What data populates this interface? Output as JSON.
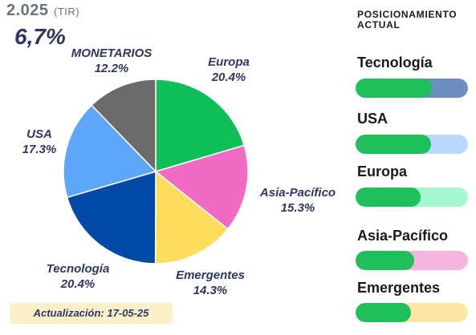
{
  "header": {
    "year": "2.025",
    "year_unit": "(TIR)",
    "yield": "6,7%"
  },
  "chart_data": {
    "type": "pie",
    "slices": [
      {
        "name": "Europa",
        "value": 20.4,
        "label": "20.4%",
        "color": "#0fbf5a"
      },
      {
        "name": "Asia-Pacífico",
        "value": 15.3,
        "label": "15.3%",
        "color": "#f26bc3"
      },
      {
        "name": "Emergentes",
        "value": 14.3,
        "label": "14.3%",
        "color": "#ffdd5c"
      },
      {
        "name": "Tecnología",
        "value": 20.4,
        "label": "20.4%",
        "color": "#0349a8"
      },
      {
        "name": "USA",
        "value": 17.3,
        "label": "17.3%",
        "color": "#5ea7f8"
      },
      {
        "name": "MONETARIOS",
        "value": 12.2,
        "label": "12.2%",
        "color": "#6b6b6b"
      }
    ]
  },
  "footer": {
    "updated": "Actualización: 17-05-25"
  },
  "positioning": {
    "title": "POSICIONAMIENTO ACTUAL",
    "items": [
      {
        "label": "Tecnología",
        "level": 0.68,
        "fill_color": "#1fbf5c",
        "track_color": "#6e8fbe"
      },
      {
        "label": "USA",
        "level": 0.67,
        "fill_color": "#1fbf5c",
        "track_color": "#bcd9fb"
      },
      {
        "label": "Europa",
        "level": 0.58,
        "fill_color": "#1fbf5c",
        "track_color": "#a4f7d0"
      },
      {
        "label": "Asia-Pacífico",
        "level": 0.52,
        "fill_color": "#1fbf5c",
        "track_color": "#f6b4df"
      },
      {
        "label": "Emergentes",
        "level": 0.49,
        "fill_color": "#1fbf5c",
        "track_color": "#fbe7a6"
      }
    ]
  }
}
